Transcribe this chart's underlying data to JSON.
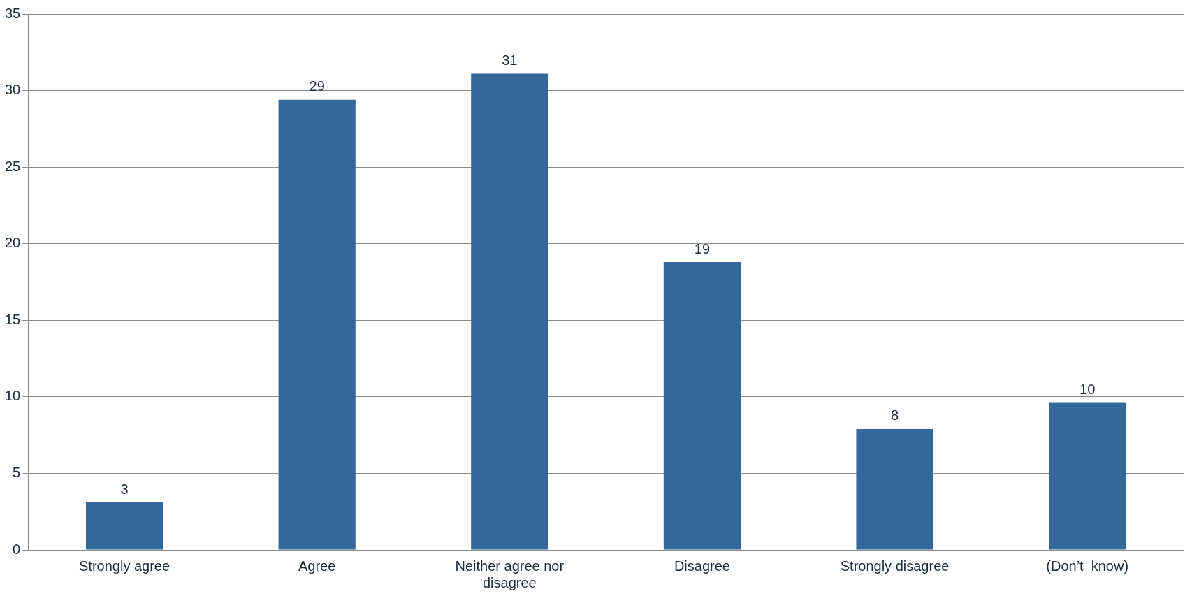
{
  "chart_data": {
    "type": "bar",
    "categories": [
      "Strongly agree",
      "Agree",
      "Neither agree nor disagree",
      "Disagree",
      "Strongly disagree",
      "(Don’t  know)"
    ],
    "values": [
      3.1,
      29.4,
      31.1,
      18.8,
      7.9,
      9.6
    ],
    "value_labels": [
      "3",
      "29",
      "31",
      "19",
      "8",
      "10"
    ],
    "color": "#34679b",
    "ylim": [
      0,
      35
    ],
    "yticks": [
      0,
      5,
      10,
      15,
      20,
      25,
      30,
      35
    ],
    "grid": "y",
    "legend": false
  }
}
